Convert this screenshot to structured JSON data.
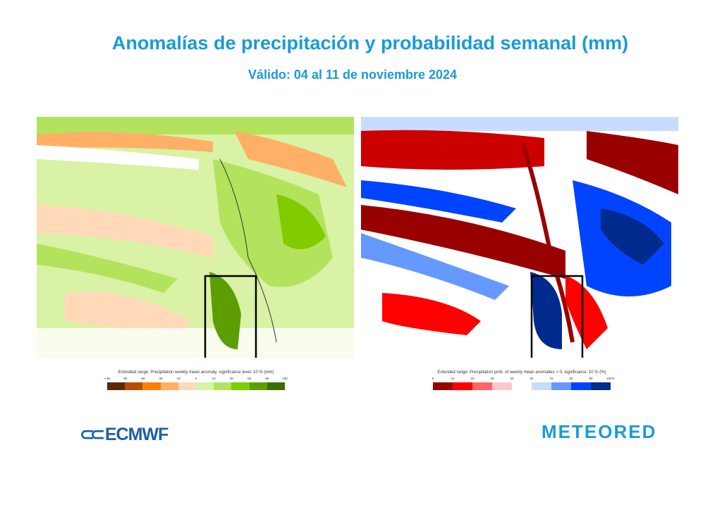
{
  "header": {
    "title": "Anomalías de precipitación y probabilidad semanal (mm)",
    "subtitle": "Válido: 04 al 11 de noviembre 2024"
  },
  "left_map": {
    "legend_caption": "Extended range: Precipitation weekly mean anomaly, significance level: 10 % (mm)",
    "ticks": [
      "<-90",
      "-90",
      "-60",
      "-30",
      "-10",
      "0",
      "10",
      "30",
      "60",
      "90",
      ">90"
    ],
    "colors": [
      "#5a2a00",
      "#b05000",
      "#ff8000",
      "#ffb066",
      "#ffd9b8",
      "#d9f2a6",
      "#b3e35c",
      "#80cc00",
      "#5c9e00",
      "#3f6b00"
    ]
  },
  "right_map": {
    "legend_caption": "Extended range: Precipitation prob. of weekly mean anomalies > 0, significance: 10 % (%)",
    "ticks": [
      "0",
      "10",
      "20",
      "30",
      "40",
      "60",
      "70",
      "80",
      "90",
      "100%"
    ],
    "colors": [
      "#990000",
      "#ff0000",
      "#ff6666",
      "#ffc8c8",
      "#ffffff",
      "#c8dcff",
      "#6699ff",
      "#0044ff",
      "#002a8c"
    ]
  },
  "logos": {
    "ecmwf": "ECMWF",
    "meteored": "METEORED"
  }
}
